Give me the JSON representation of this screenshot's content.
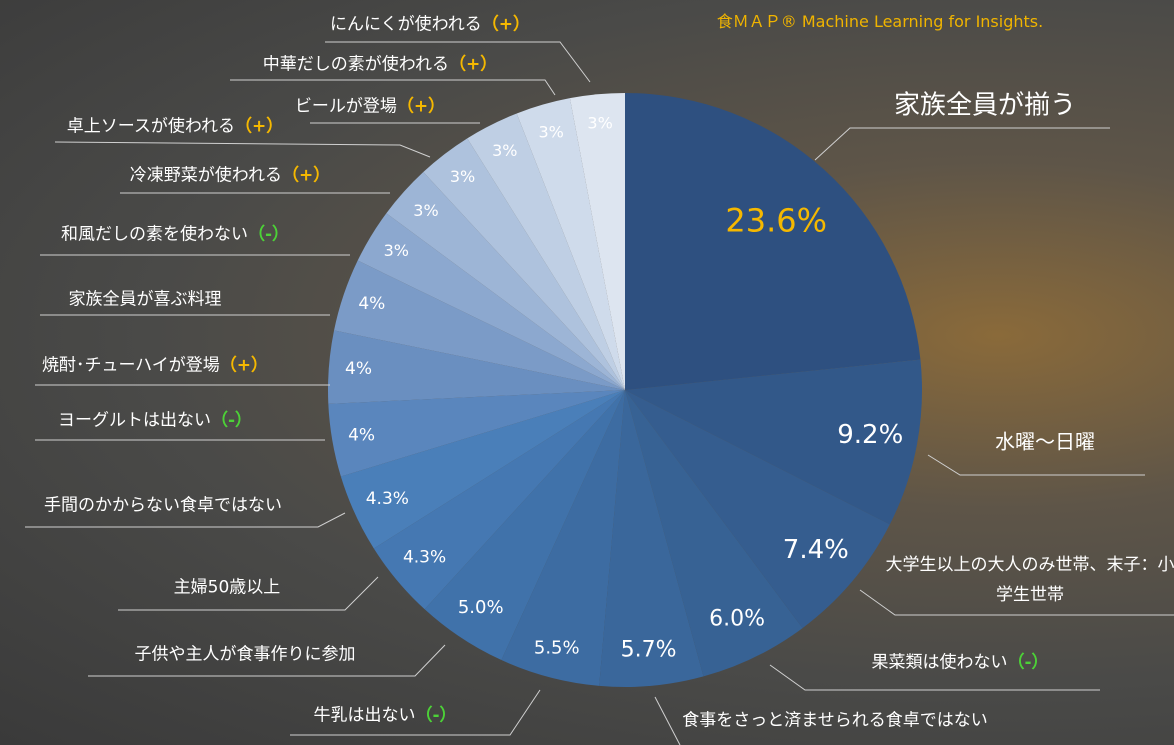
{
  "brand": "食ＭＡＰ® Machine Learning for Insights.",
  "chart_data": {
    "type": "pie",
    "categories": [
      "家族全員が揃う",
      "水曜〜日曜",
      "大学生以上の大人のみ世帯、末子：小学生世帯",
      "果菜類は使わない",
      "食事をさっと済ませられる食卓ではない",
      "牛乳は出ない",
      "子供や主人が食事作りに参加",
      "主婦50歳以上",
      "手間のかからない食卓ではない",
      "ヨーグルトは出ない",
      "焼酎･チューハイが登場",
      "家族全員が喜ぶ料理",
      "和風だしの素を使わない",
      "冷凍野菜が使われる",
      "卓上ソースが使われる",
      "ビールが登場",
      "中華だしの素が使われる",
      "にんにくが使われる"
    ],
    "signs": [
      null,
      null,
      null,
      {
        "text": "（-）",
        "color": "#4cd137"
      },
      null,
      {
        "text": "（-）",
        "color": "#4cd137"
      },
      null,
      null,
      null,
      {
        "text": "（-）",
        "color": "#4cd137"
      },
      {
        "text": "（+）",
        "color": "#f5b800"
      },
      null,
      {
        "text": "（-）",
        "color": "#4cd137"
      },
      {
        "text": "（+）",
        "color": "#f5b800"
      },
      {
        "text": "（+）",
        "color": "#f5b800"
      },
      {
        "text": "（+）",
        "color": "#f5b800"
      },
      {
        "text": "（+）",
        "color": "#f5b800"
      },
      {
        "text": "（+）",
        "color": "#f5b800"
      }
    ],
    "values": [
      23.6,
      9.2,
      7.4,
      6.0,
      5.7,
      5.5,
      5.0,
      4.3,
      4.3,
      4,
      4,
      4,
      3,
      3,
      3,
      3,
      3,
      3
    ],
    "value_labels": [
      "23.6%",
      "9.2%",
      "7.4%",
      "6.0%",
      "5.7%",
      "5.5%",
      "5.0%",
      "4.3%",
      "4.3%",
      "4%",
      "4%",
      "4%",
      "3%",
      "3%",
      "3%",
      "3%",
      "3%",
      "3%"
    ],
    "colors": [
      "#2e5080",
      "#325889",
      "#355d8f",
      "#376294",
      "#3a679b",
      "#3d6ca2",
      "#4072aa",
      "#4578b2",
      "#4a7fb9",
      "#5a86bd",
      "#6a8fc0",
      "#7b9bc7",
      "#8ca8cf",
      "#9db5d6",
      "#aec2dd",
      "#bfcfe4",
      "#cfdbeb",
      "#dde5f0"
    ]
  }
}
